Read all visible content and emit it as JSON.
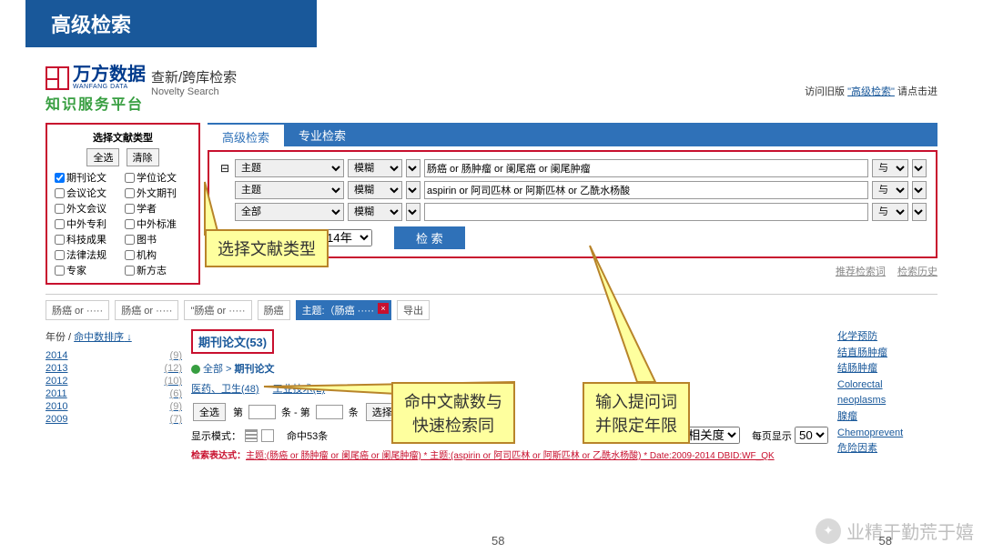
{
  "slide_title": "高级检索",
  "logo": {
    "cn": "万方数据",
    "en": "WANFANG DATA",
    "sub": "知识服务平台"
  },
  "novelty": {
    "cn": "查新/跨库检索",
    "en": "Novelty Search"
  },
  "old_link": {
    "prefix": "访问旧版 ",
    "link": "\"高级检索\"",
    "suffix": " 请点击进"
  },
  "left_panel": {
    "title": "选择文献类型",
    "select_all": "全选",
    "clear": "清除",
    "items": [
      {
        "label": "期刊论文",
        "checked": true
      },
      {
        "label": "学位论文",
        "checked": false
      },
      {
        "label": "会议论文",
        "checked": false
      },
      {
        "label": "外文期刊",
        "checked": false
      },
      {
        "label": "外文会议",
        "checked": false
      },
      {
        "label": "学者",
        "checked": false
      },
      {
        "label": "中外专利",
        "checked": false
      },
      {
        "label": "中外标准",
        "checked": false
      },
      {
        "label": "科技成果",
        "checked": false
      },
      {
        "label": "图书",
        "checked": false
      },
      {
        "label": "法律法规",
        "checked": false
      },
      {
        "label": "机构",
        "checked": false
      },
      {
        "label": "专家",
        "checked": false
      },
      {
        "label": "新方志",
        "checked": false
      }
    ]
  },
  "tabs": [
    "高级检索",
    "专业检索"
  ],
  "rows": [
    {
      "field": "主题",
      "fuzzy": "模糊",
      "value": "肠癌 or 肠肿瘤 or 阑尾癌 or 阑尾肿瘤",
      "op": "与"
    },
    {
      "field": "主题",
      "fuzzy": "模糊",
      "value": "aspirin or 阿司匹林 or 阿斯匹林 or 乙酰水杨酸",
      "op": "与"
    },
    {
      "field": "全部",
      "fuzzy": "模糊",
      "value": "",
      "op": "与"
    }
  ],
  "year_from": "2009年",
  "year_to": "2014年",
  "search_btn": "检 索",
  "sublinks": [
    "推荐检索词",
    "检索历史"
  ],
  "tagstrip": [
    {
      "t": "肠癌 or ·····"
    },
    {
      "t": "肠癌 or ·····"
    },
    {
      "t": "\"肠癌 or ·····"
    },
    {
      "t": "肠癌"
    },
    {
      "t": "主题:（肠癌 ·····",
      "active": true
    },
    {
      "t": "导出"
    }
  ],
  "yearlist_title_a": "年份",
  "yearlist_title_b": "命中数排序",
  "years": [
    {
      "y": "2014",
      "n": "(9)"
    },
    {
      "y": "2013",
      "n": "(12)"
    },
    {
      "y": "2012",
      "n": "(10)"
    },
    {
      "y": "2011",
      "n": "(6)"
    },
    {
      "y": "2010",
      "n": "(9)"
    },
    {
      "y": "2009",
      "n": "(7)"
    }
  ],
  "result_title": "期刊论文(53)",
  "crumb_all": "全部",
  "crumb_sep": " > ",
  "crumb_cur": "期刊论文",
  "filters": [
    "医药、卫生(48)",
    "工业技术(2)"
  ],
  "toolbar": {
    "all": "全选",
    "page_lbl1": "第",
    "page_lbl2": "条 - 第",
    "page_lbl3": "条",
    "select": "选择"
  },
  "display": {
    "mode": "显示模式：",
    "hits": "命中53条",
    "sort": "排序",
    "relevance": "相关度",
    "perpage": "每页显示",
    "pp": "50"
  },
  "expr_label": "检索表达式：",
  "expr_body": "主题:(肠癌 or 肠肿瘤 or 阑尾癌 or 阑尾肿瘤) * 主题:(aspirin or 阿司匹林 or 阿斯匹林 or 乙酰水杨酸) * Date:2009-2014 DBID:WF_QK",
  "side_terms": [
    "化学预防",
    "结直肠肿瘤",
    "结肠肿瘤",
    "Colorectal",
    "neoplasms",
    "腺瘤",
    "Chemoprevent",
    "危险因素"
  ],
  "callouts": {
    "c1": "选择文献类型",
    "c2": "命中文献数与\n快速检索同",
    "c3": "输入提问词\n并限定年限"
  },
  "watermark": "业精于勤荒于嬉",
  "page_no": "58"
}
